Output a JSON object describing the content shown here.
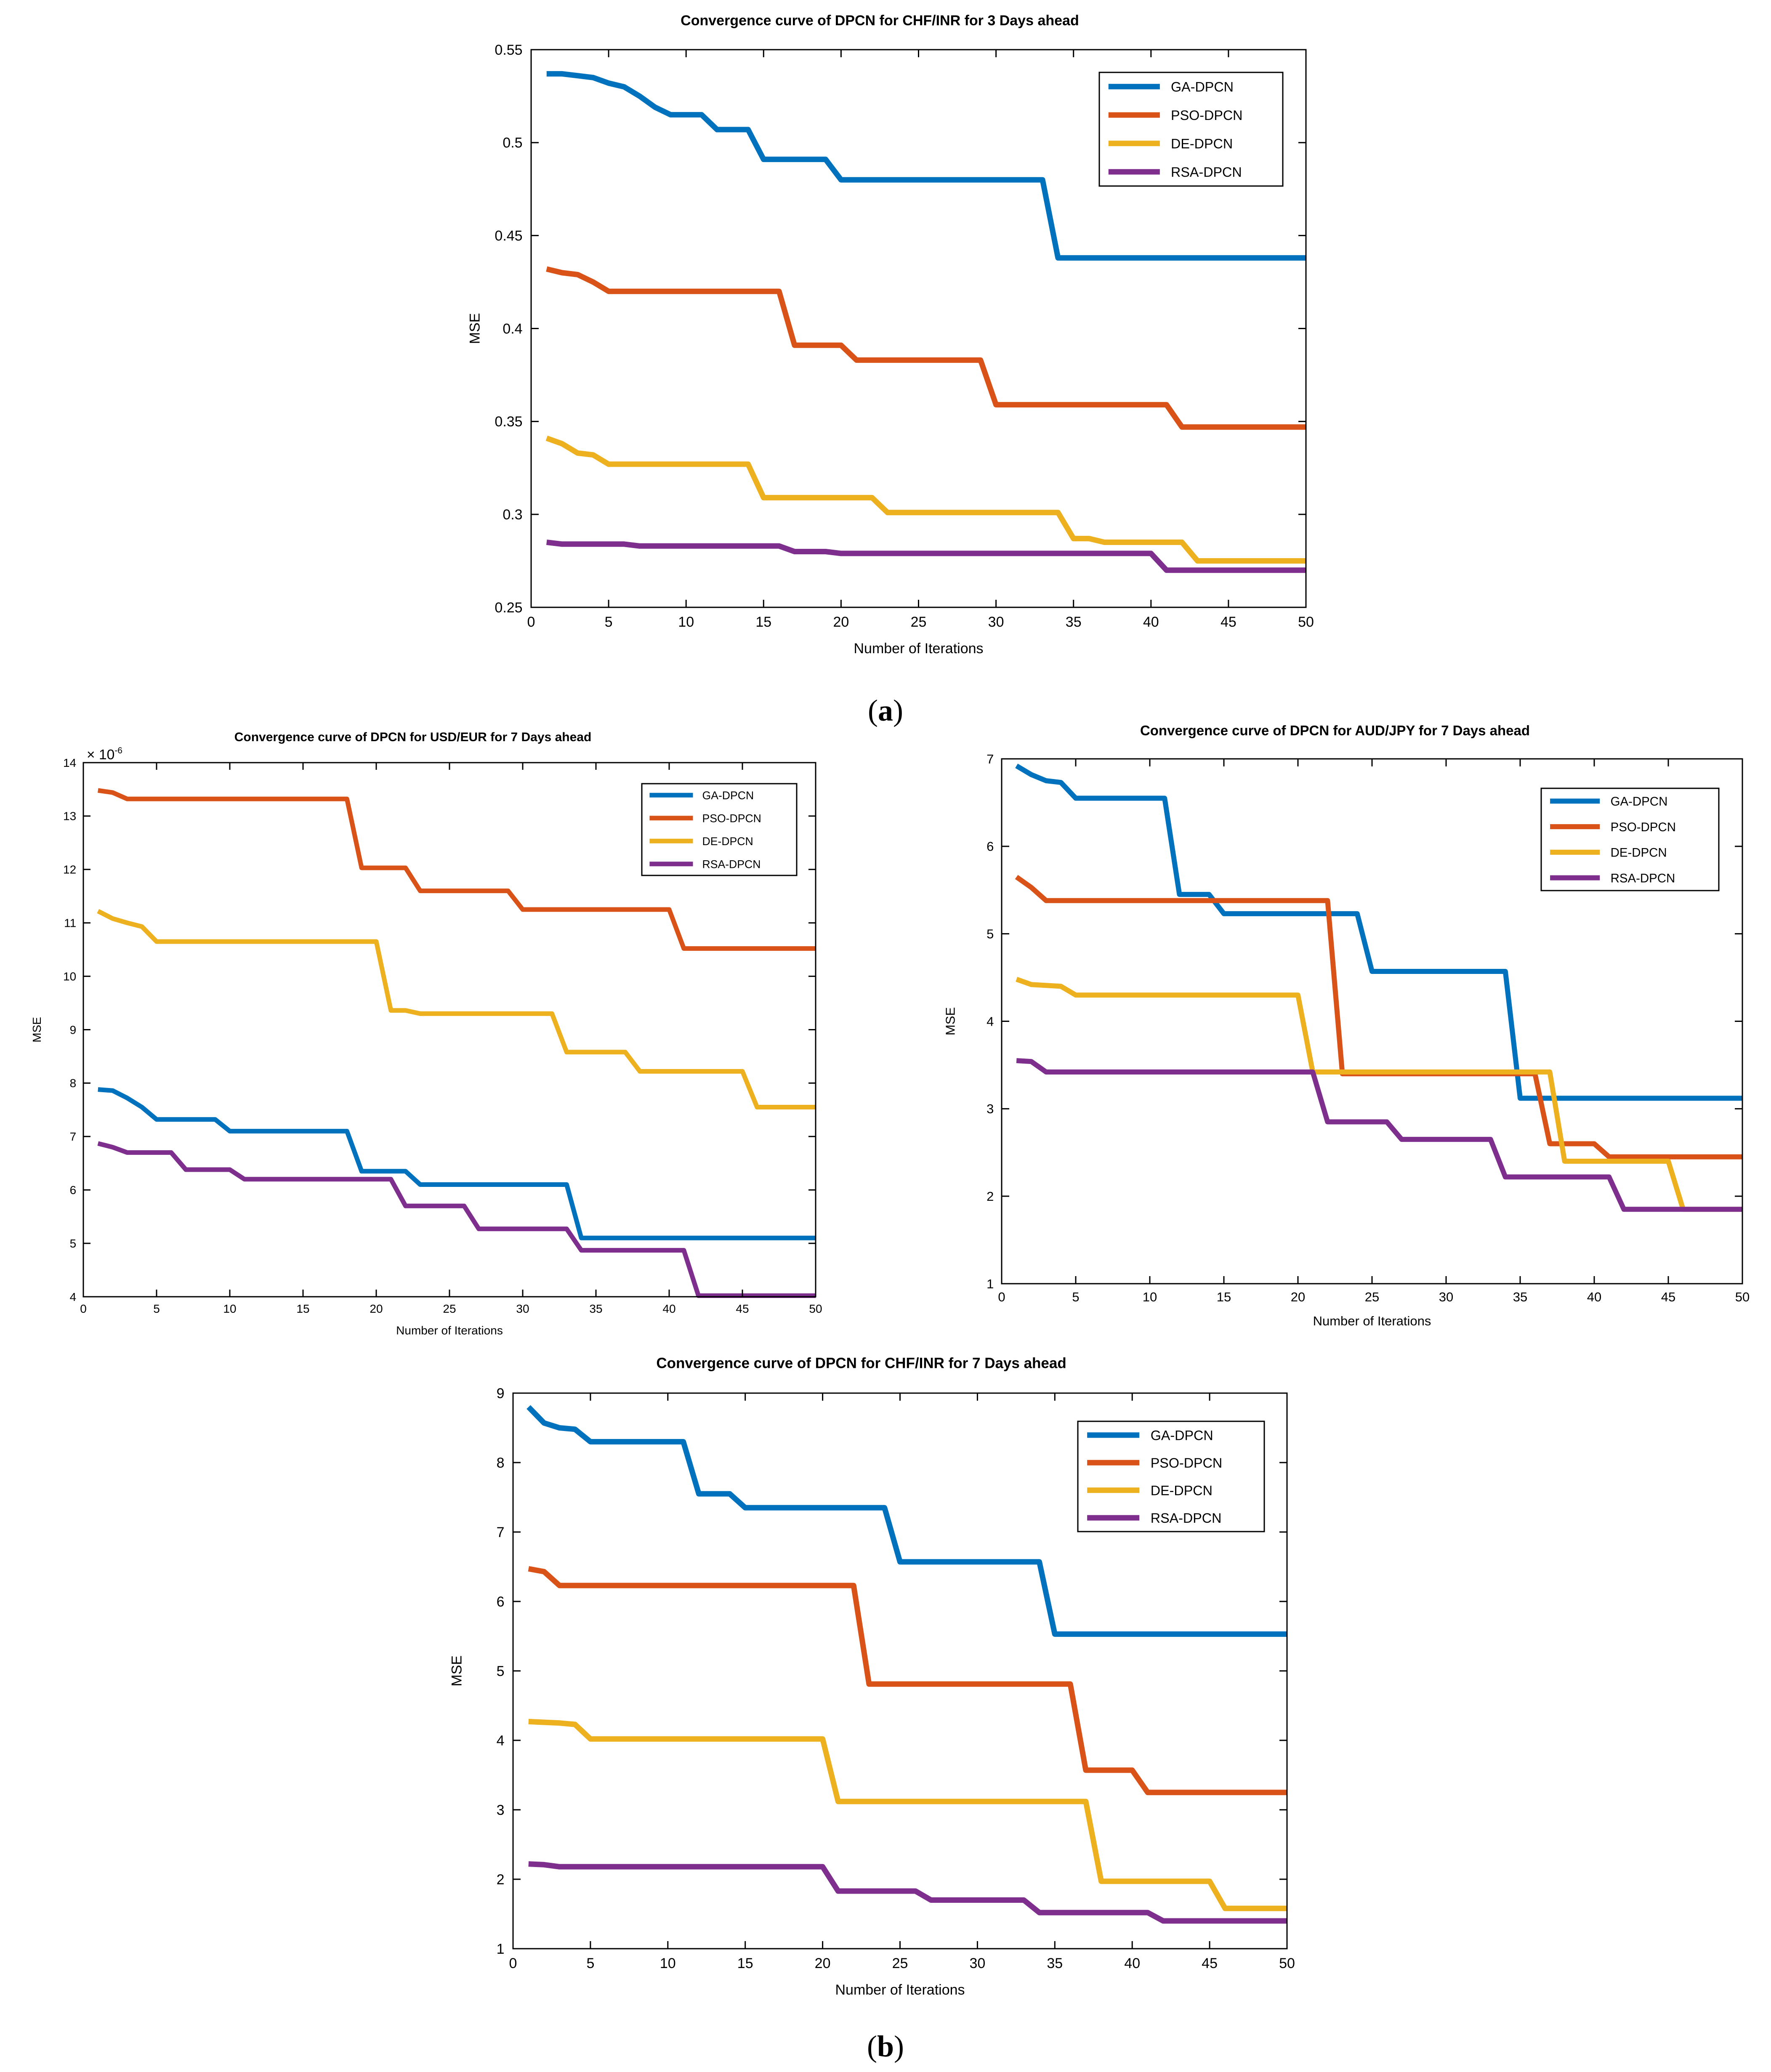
{
  "panel_labels": {
    "a": {
      "open": "(",
      "letter": "a",
      "close": ")"
    },
    "b": {
      "open": "(",
      "letter": "b",
      "close": ")"
    }
  },
  "colors": {
    "GA-DPCN": "#0072BD",
    "PSO-DPCN": "#D95319",
    "DE-DPCN": "#EDB120",
    "RSA-DPCN": "#7E2F8E"
  },
  "chart_data": [
    {
      "id": "chf3",
      "type": "line",
      "title": "Convergence curve of DPCN for CHF/INR for 3 Days ahead",
      "xlabel": "Number of Iterations",
      "ylabel": "MSE",
      "xlim": [
        0,
        50
      ],
      "ylim": [
        0.25,
        0.55
      ],
      "xticks": [
        0,
        5,
        10,
        15,
        20,
        25,
        30,
        35,
        40,
        45,
        50
      ],
      "yticks": [
        0.25,
        0.3,
        0.35,
        0.4,
        0.45,
        0.5,
        0.55
      ],
      "ytick_labels": [
        "0.25",
        "0.3",
        "0.35",
        "0.4",
        "0.45",
        "0.5",
        "0.55"
      ],
      "legend_position": "top-right",
      "exponent": "",
      "series": [
        {
          "name": "GA-DPCN",
          "points": [
            [
              1,
              0.537
            ],
            [
              2,
              0.537
            ],
            [
              3,
              0.536
            ],
            [
              4,
              0.535
            ],
            [
              5,
              0.532
            ],
            [
              6,
              0.53
            ],
            [
              7,
              0.525
            ],
            [
              8,
              0.519
            ],
            [
              9,
              0.515
            ],
            [
              11,
              0.515
            ],
            [
              12,
              0.507
            ],
            [
              14,
              0.507
            ],
            [
              15,
              0.491
            ],
            [
              19,
              0.491
            ],
            [
              20,
              0.48
            ],
            [
              33,
              0.48
            ],
            [
              34,
              0.438
            ],
            [
              50,
              0.438
            ]
          ]
        },
        {
          "name": "PSO-DPCN",
          "points": [
            [
              1,
              0.432
            ],
            [
              2,
              0.43
            ],
            [
              3,
              0.429
            ],
            [
              4,
              0.425
            ],
            [
              5,
              0.42
            ],
            [
              16,
              0.42
            ],
            [
              17,
              0.391
            ],
            [
              20,
              0.391
            ],
            [
              21,
              0.383
            ],
            [
              29,
              0.383
            ],
            [
              30,
              0.359
            ],
            [
              41,
              0.359
            ],
            [
              42,
              0.347
            ],
            [
              50,
              0.347
            ]
          ]
        },
        {
          "name": "DE-DPCN",
          "points": [
            [
              1,
              0.341
            ],
            [
              2,
              0.338
            ],
            [
              3,
              0.333
            ],
            [
              4,
              0.332
            ],
            [
              5,
              0.327
            ],
            [
              14,
              0.327
            ],
            [
              15,
              0.309
            ],
            [
              22,
              0.309
            ],
            [
              23,
              0.301
            ],
            [
              34,
              0.301
            ],
            [
              35,
              0.287
            ],
            [
              36,
              0.287
            ],
            [
              37,
              0.285
            ],
            [
              42,
              0.285
            ],
            [
              43,
              0.275
            ],
            [
              50,
              0.275
            ]
          ]
        },
        {
          "name": "RSA-DPCN",
          "points": [
            [
              1,
              0.285
            ],
            [
              2,
              0.284
            ],
            [
              6,
              0.284
            ],
            [
              7,
              0.283
            ],
            [
              16,
              0.283
            ],
            [
              17,
              0.28
            ],
            [
              19,
              0.28
            ],
            [
              20,
              0.279
            ],
            [
              40,
              0.279
            ],
            [
              41,
              0.27
            ],
            [
              50,
              0.27
            ]
          ]
        }
      ]
    },
    {
      "id": "usd7",
      "type": "line",
      "title": "Convergence curve of DPCN for USD/EUR for 7 Days ahead",
      "xlabel": "Number of Iterations",
      "ylabel": "MSE",
      "xlim": [
        0,
        50
      ],
      "ylim": [
        4,
        14
      ],
      "xticks": [
        0,
        5,
        10,
        15,
        20,
        25,
        30,
        35,
        40,
        45,
        50
      ],
      "yticks": [
        4,
        5,
        6,
        7,
        8,
        9,
        10,
        11,
        12,
        13,
        14
      ],
      "ytick_labels": [
        "4",
        "5",
        "6",
        "7",
        "8",
        "9",
        "10",
        "11",
        "12",
        "13",
        "14"
      ],
      "legend_position": "top-right",
      "exponent": "-6",
      "series": [
        {
          "name": "GA-DPCN",
          "points": [
            [
              1,
              7.88
            ],
            [
              2,
              7.86
            ],
            [
              3,
              7.72
            ],
            [
              4,
              7.55
            ],
            [
              5,
              7.32
            ],
            [
              9,
              7.32
            ],
            [
              10,
              7.1
            ],
            [
              18,
              7.1
            ],
            [
              19,
              6.35
            ],
            [
              22,
              6.35
            ],
            [
              23,
              6.1
            ],
            [
              33,
              6.1
            ],
            [
              34,
              5.1
            ],
            [
              50,
              5.1
            ]
          ]
        },
        {
          "name": "PSO-DPCN",
          "points": [
            [
              1,
              13.48
            ],
            [
              2,
              13.44
            ],
            [
              3,
              13.32
            ],
            [
              18,
              13.32
            ],
            [
              19,
              12.03
            ],
            [
              22,
              12.03
            ],
            [
              23,
              11.6
            ],
            [
              29,
              11.6
            ],
            [
              30,
              11.25
            ],
            [
              40,
              11.25
            ],
            [
              41,
              10.52
            ],
            [
              50,
              10.52
            ]
          ]
        },
        {
          "name": "DE-DPCN",
          "points": [
            [
              1,
              11.22
            ],
            [
              2,
              11.08
            ],
            [
              3,
              11.0
            ],
            [
              4,
              10.93
            ],
            [
              5,
              10.65
            ],
            [
              20,
              10.65
            ],
            [
              21,
              9.36
            ],
            [
              22,
              9.36
            ],
            [
              23,
              9.3
            ],
            [
              32,
              9.3
            ],
            [
              33,
              8.58
            ],
            [
              37,
              8.58
            ],
            [
              38,
              8.22
            ],
            [
              45,
              8.22
            ],
            [
              46,
              7.55
            ],
            [
              50,
              7.55
            ]
          ]
        },
        {
          "name": "RSA-DPCN",
          "points": [
            [
              1,
              6.87
            ],
            [
              2,
              6.8
            ],
            [
              3,
              6.7
            ],
            [
              6,
              6.7
            ],
            [
              7,
              6.38
            ],
            [
              10,
              6.38
            ],
            [
              11,
              6.2
            ],
            [
              21,
              6.2
            ],
            [
              22,
              5.7
            ],
            [
              26,
              5.7
            ],
            [
              27,
              5.27
            ],
            [
              33,
              5.27
            ],
            [
              34,
              4.87
            ],
            [
              41,
              4.87
            ],
            [
              42,
              4.02
            ],
            [
              50,
              4.02
            ]
          ]
        }
      ]
    },
    {
      "id": "aud7",
      "type": "line",
      "title": "Convergence curve of DPCN for AUD/JPY for 7 Days ahead",
      "xlabel": "Number of Iterations",
      "ylabel": "MSE",
      "xlim": [
        0,
        50
      ],
      "ylim": [
        1,
        7
      ],
      "xticks": [
        0,
        5,
        10,
        15,
        20,
        25,
        30,
        35,
        40,
        45,
        50
      ],
      "yticks": [
        1,
        2,
        3,
        4,
        5,
        6,
        7
      ],
      "ytick_labels": [
        "1",
        "2",
        "3",
        "4",
        "5",
        "6",
        "7"
      ],
      "legend_position": "top-right",
      "exponent": "",
      "series": [
        {
          "name": "GA-DPCN",
          "points": [
            [
              1,
              6.92
            ],
            [
              2,
              6.82
            ],
            [
              3,
              6.75
            ],
            [
              4,
              6.73
            ],
            [
              5,
              6.55
            ],
            [
              11,
              6.55
            ],
            [
              12,
              5.45
            ],
            [
              14,
              5.45
            ],
            [
              15,
              5.23
            ],
            [
              24,
              5.23
            ],
            [
              25,
              4.57
            ],
            [
              34,
              4.57
            ],
            [
              35,
              3.12
            ],
            [
              50,
              3.12
            ]
          ]
        },
        {
          "name": "PSO-DPCN",
          "points": [
            [
              1,
              5.65
            ],
            [
              2,
              5.53
            ],
            [
              3,
              5.38
            ],
            [
              22,
              5.38
            ],
            [
              23,
              3.4
            ],
            [
              36,
              3.4
            ],
            [
              37,
              2.6
            ],
            [
              40,
              2.6
            ],
            [
              41,
              2.45
            ],
            [
              50,
              2.45
            ]
          ]
        },
        {
          "name": "DE-DPCN",
          "points": [
            [
              1,
              4.48
            ],
            [
              2,
              4.42
            ],
            [
              4,
              4.4
            ],
            [
              5,
              4.3
            ],
            [
              20,
              4.3
            ],
            [
              21,
              3.42
            ],
            [
              37,
              3.42
            ],
            [
              38,
              2.4
            ],
            [
              45,
              2.4
            ],
            [
              46,
              1.85
            ],
            [
              50,
              1.85
            ]
          ]
        },
        {
          "name": "RSA-DPCN",
          "points": [
            [
              1,
              3.55
            ],
            [
              2,
              3.54
            ],
            [
              3,
              3.42
            ],
            [
              21,
              3.42
            ],
            [
              22,
              2.85
            ],
            [
              26,
              2.85
            ],
            [
              27,
              2.65
            ],
            [
              33,
              2.65
            ],
            [
              34,
              2.22
            ],
            [
              41,
              2.22
            ],
            [
              42,
              1.85
            ],
            [
              50,
              1.85
            ]
          ]
        }
      ]
    },
    {
      "id": "chf7",
      "type": "line",
      "title": "Convergence curve of DPCN for CHF/INR for 7 Days ahead",
      "xlabel": "Number of Iterations",
      "ylabel": "MSE",
      "xlim": [
        0,
        50
      ],
      "ylim": [
        1,
        9
      ],
      "xticks": [
        0,
        5,
        10,
        15,
        20,
        25,
        30,
        35,
        40,
        45,
        50
      ],
      "yticks": [
        1,
        2,
        3,
        4,
        5,
        6,
        7,
        8,
        9
      ],
      "ytick_labels": [
        "1",
        "2",
        "3",
        "4",
        "5",
        "6",
        "7",
        "8",
        "9"
      ],
      "legend_position": "top-right",
      "exponent": "",
      "series": [
        {
          "name": "GA-DPCN",
          "points": [
            [
              1,
              8.8
            ],
            [
              2,
              8.57
            ],
            [
              3,
              8.5
            ],
            [
              4,
              8.48
            ],
            [
              5,
              8.3
            ],
            [
              11,
              8.3
            ],
            [
              12,
              7.55
            ],
            [
              14,
              7.55
            ],
            [
              15,
              7.35
            ],
            [
              24,
              7.35
            ],
            [
              25,
              6.57
            ],
            [
              34,
              6.57
            ],
            [
              35,
              5.53
            ],
            [
              50,
              5.53
            ]
          ]
        },
        {
          "name": "PSO-DPCN",
          "points": [
            [
              1,
              6.47
            ],
            [
              2,
              6.43
            ],
            [
              3,
              6.23
            ],
            [
              22,
              6.23
            ],
            [
              23,
              4.81
            ],
            [
              36,
              4.81
            ],
            [
              37,
              3.57
            ],
            [
              40,
              3.57
            ],
            [
              41,
              3.25
            ],
            [
              50,
              3.25
            ]
          ]
        },
        {
          "name": "DE-DPCN",
          "points": [
            [
              1,
              4.27
            ],
            [
              2,
              4.26
            ],
            [
              3,
              4.25
            ],
            [
              4,
              4.23
            ],
            [
              5,
              4.02
            ],
            [
              20,
              4.02
            ],
            [
              21,
              3.12
            ],
            [
              37,
              3.12
            ],
            [
              38,
              1.97
            ],
            [
              45,
              1.97
            ],
            [
              46,
              1.58
            ],
            [
              50,
              1.58
            ]
          ]
        },
        {
          "name": "RSA-DPCN",
          "points": [
            [
              1,
              2.22
            ],
            [
              2,
              2.21
            ],
            [
              3,
              2.18
            ],
            [
              20,
              2.18
            ],
            [
              21,
              1.83
            ],
            [
              26,
              1.83
            ],
            [
              27,
              1.7
            ],
            [
              33,
              1.7
            ],
            [
              34,
              1.52
            ],
            [
              40,
              1.52
            ],
            [
              41,
              1.52
            ],
            [
              42,
              1.4
            ],
            [
              50,
              1.4
            ]
          ]
        }
      ]
    }
  ]
}
